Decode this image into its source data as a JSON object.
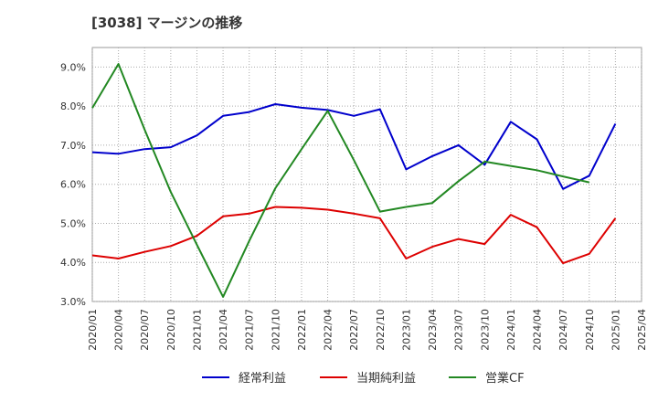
{
  "chart_data": {
    "type": "line",
    "title": "[3038]  マージンの推移",
    "xlabel": "",
    "ylabel": "",
    "x": [
      "2020/01",
      "2020/04",
      "2020/07",
      "2020/10",
      "2021/01",
      "2021/04",
      "2021/07",
      "2021/10",
      "2022/01",
      "2022/04",
      "2022/07",
      "2022/10",
      "2023/01",
      "2023/04",
      "2023/07",
      "2023/10",
      "2024/01",
      "2024/04",
      "2024/07",
      "2024/10",
      "2025/01",
      "2025/04"
    ],
    "y_ticks": [
      "3.0%",
      "4.0%",
      "5.0%",
      "6.0%",
      "7.0%",
      "8.0%",
      "9.0%"
    ],
    "ylim": [
      3.0,
      9.5
    ],
    "grid": true,
    "legend_position": "bottom",
    "series": [
      {
        "name": "経常利益",
        "color": "#0000cc",
        "values": [
          6.82,
          6.78,
          6.9,
          6.95,
          7.25,
          7.75,
          7.85,
          8.05,
          7.96,
          7.9,
          7.75,
          7.92,
          6.38,
          6.72,
          7.0,
          6.5,
          7.6,
          7.15,
          5.88,
          6.22,
          7.55,
          null
        ]
      },
      {
        "name": "当期純利益",
        "color": "#dd0000",
        "values": [
          4.18,
          4.1,
          4.27,
          4.42,
          4.68,
          5.18,
          5.25,
          5.42,
          5.4,
          5.35,
          5.25,
          5.13,
          4.1,
          4.4,
          4.6,
          4.47,
          5.22,
          4.9,
          3.98,
          4.22,
          5.13,
          null
        ]
      },
      {
        "name": "営業CF",
        "color": "#228822",
        "values": [
          7.95,
          9.08,
          7.4,
          5.8,
          4.45,
          3.12,
          4.55,
          5.9,
          6.9,
          7.88,
          6.62,
          5.3,
          5.42,
          5.52,
          6.08,
          6.58,
          6.47,
          6.36,
          6.2,
          6.05,
          null,
          null
        ]
      }
    ]
  }
}
